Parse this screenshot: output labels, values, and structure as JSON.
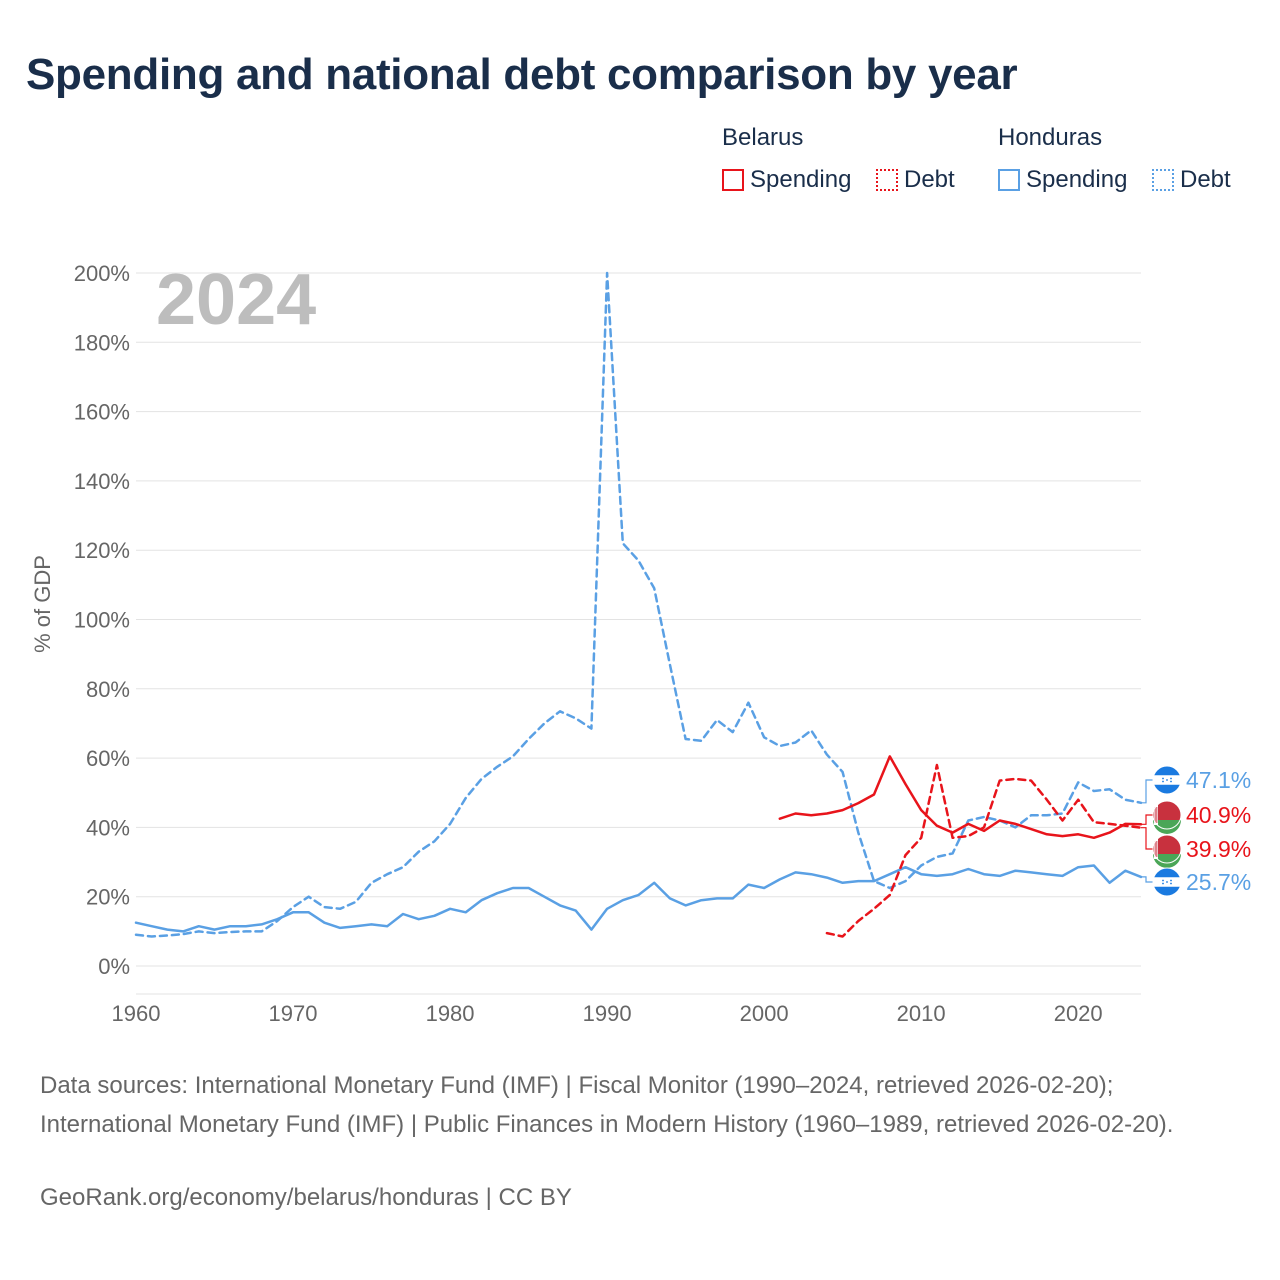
{
  "title": "Spending and national debt comparison by year",
  "legend": {
    "groups": [
      {
        "country": "Belarus",
        "spending_label": "Spending",
        "debt_label": "Debt",
        "color": "#e8141b"
      },
      {
        "country": "Honduras",
        "spending_label": "Spending",
        "debt_label": "Debt",
        "color": "#5aa0e4"
      }
    ]
  },
  "chart_data": {
    "type": "line",
    "title": "Spending and national debt comparison by year",
    "year_watermark": "2024",
    "xlabel": "",
    "ylabel": "% of GDP",
    "xlim": [
      1960,
      2024
    ],
    "ylim": [
      0,
      200
    ],
    "xticks": [
      1960,
      1970,
      1980,
      1990,
      2000,
      2010,
      2020
    ],
    "xtick_labels": [
      "1960",
      "1970",
      "1980",
      "1990",
      "2000",
      "2010",
      "2020"
    ],
    "yticks": [
      0,
      20,
      40,
      60,
      80,
      100,
      120,
      140,
      160,
      180,
      200
    ],
    "ytick_labels": [
      "0%",
      "20%",
      "40%",
      "60%",
      "80%",
      "100%",
      "120%",
      "140%",
      "160%",
      "180%",
      "200%"
    ],
    "grid": true,
    "series": [
      {
        "name": "Honduras Debt",
        "country": "Honduras",
        "kind": "debt",
        "color": "#5aa0e4",
        "dashed": true,
        "end_label": "47.1%",
        "x": [
          1960,
          1961,
          1962,
          1963,
          1964,
          1965,
          1966,
          1967,
          1968,
          1969,
          1970,
          1971,
          1972,
          1973,
          1974,
          1975,
          1976,
          1977,
          1978,
          1979,
          1980,
          1981,
          1982,
          1983,
          1984,
          1985,
          1986,
          1987,
          1988,
          1989,
          1990,
          1991,
          1992,
          1993,
          1994,
          1995,
          1996,
          1997,
          1998,
          1999,
          2000,
          2001,
          2002,
          2003,
          2004,
          2005,
          2006,
          2007,
          2008,
          2009,
          2010,
          2011,
          2012,
          2013,
          2014,
          2015,
          2016,
          2017,
          2018,
          2019,
          2020,
          2021,
          2022,
          2023,
          2024
        ],
        "values": [
          9,
          8.5,
          8.8,
          9.2,
          10,
          9.5,
          9.8,
          10,
          10,
          13,
          17,
          20,
          17,
          16.5,
          18.5,
          24,
          26.5,
          28.5,
          33,
          36,
          41,
          48.5,
          54,
          57.5,
          60.5,
          65.5,
          70,
          73.5,
          71.5,
          68.5,
          200,
          122,
          117,
          109,
          87,
          65.5,
          65,
          71,
          67.5,
          76,
          66,
          63.5,
          64.5,
          68,
          61,
          56,
          38.5,
          24.5,
          22.5,
          24.5,
          29,
          31.5,
          32.5,
          42,
          43,
          42,
          40,
          43.5,
          43.5,
          44,
          53,
          50.5,
          51,
          48,
          47.1
        ]
      },
      {
        "name": "Honduras Spending",
        "country": "Honduras",
        "kind": "spending",
        "color": "#5aa0e4",
        "dashed": false,
        "end_label": "25.7%",
        "x": [
          1960,
          1961,
          1962,
          1963,
          1964,
          1965,
          1966,
          1967,
          1968,
          1969,
          1970,
          1971,
          1972,
          1973,
          1974,
          1975,
          1976,
          1977,
          1978,
          1979,
          1980,
          1981,
          1982,
          1983,
          1984,
          1985,
          1986,
          1987,
          1988,
          1989,
          1990,
          1991,
          1992,
          1993,
          1994,
          1995,
          1996,
          1997,
          1998,
          1999,
          2000,
          2001,
          2002,
          2003,
          2004,
          2005,
          2006,
          2007,
          2008,
          2009,
          2010,
          2011,
          2012,
          2013,
          2014,
          2015,
          2016,
          2017,
          2018,
          2019,
          2020,
          2021,
          2022,
          2023,
          2024
        ],
        "values": [
          12.5,
          11.5,
          10.5,
          10,
          11.5,
          10.5,
          11.5,
          11.5,
          12,
          13.5,
          15.5,
          15.5,
          12.5,
          11,
          11.5,
          12,
          11.5,
          15,
          13.5,
          14.5,
          16.5,
          15.5,
          19,
          21,
          22.5,
          22.5,
          20,
          17.5,
          16,
          10.5,
          16.5,
          19,
          20.5,
          24,
          19.5,
          17.5,
          19,
          19.5,
          19.5,
          23.5,
          22.5,
          25,
          27,
          26.5,
          25.5,
          24,
          24.5,
          24.5,
          26.5,
          28.5,
          26.5,
          26,
          26.5,
          28,
          26.5,
          26,
          27.5,
          27,
          26.5,
          26,
          28.5,
          29,
          24,
          27.5,
          25.7
        ]
      },
      {
        "name": "Belarus Spending",
        "country": "Belarus",
        "kind": "spending",
        "color": "#e8141b",
        "dashed": false,
        "end_label": "40.9%",
        "x": [
          2001,
          2002,
          2003,
          2004,
          2005,
          2006,
          2007,
          2008,
          2009,
          2010,
          2011,
          2012,
          2013,
          2014,
          2015,
          2016,
          2017,
          2018,
          2019,
          2020,
          2021,
          2022,
          2023,
          2024
        ],
        "values": [
          42.5,
          44,
          43.5,
          44,
          45,
          47,
          49.5,
          60.5,
          52.5,
          45,
          40.5,
          38.5,
          41,
          39,
          42,
          41,
          39.5,
          38,
          37.5,
          38,
          37,
          38.5,
          41,
          40.9
        ]
      },
      {
        "name": "Belarus Debt",
        "country": "Belarus",
        "kind": "debt",
        "color": "#e8141b",
        "dashed": true,
        "end_label": "39.9%",
        "x": [
          2004,
          2005,
          2006,
          2007,
          2008,
          2009,
          2010,
          2011,
          2012,
          2013,
          2014,
          2015,
          2016,
          2017,
          2018,
          2019,
          2020,
          2021,
          2022,
          2023,
          2024
        ],
        "values": [
          9.5,
          8.5,
          13,
          16.5,
          20.5,
          32,
          37,
          58,
          37,
          37.5,
          40,
          53.5,
          54,
          53.5,
          48,
          42,
          48,
          41.5,
          41,
          40.5,
          39.9
        ]
      }
    ]
  },
  "source_text": "Data sources: International Monetary Fund (IMF) | Fiscal Monitor (1990–2024, retrieved 2026-02-20); International Monetary Fund (IMF) | Public Finances in Modern History (1960–1989, retrieved 2026-02-20).",
  "credit_text": "GeoRank.org/economy/belarus/honduras | CC BY"
}
